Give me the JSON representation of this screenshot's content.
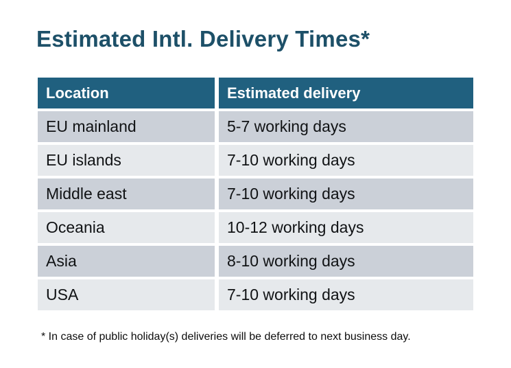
{
  "title": "Estimated Intl. Delivery Times*",
  "table": {
    "headers": [
      "Location",
      "Estimated delivery"
    ],
    "rows": [
      {
        "location": "EU mainland",
        "delivery": "5-7 working days"
      },
      {
        "location": "EU islands",
        "delivery": "7-10 working days"
      },
      {
        "location": "Middle east",
        "delivery": "7-10 working days"
      },
      {
        "location": "Oceania",
        "delivery": "10-12 working days"
      },
      {
        "location": "Asia",
        "delivery": "8-10 working days"
      },
      {
        "location": "USA",
        "delivery": "7-10 working days"
      }
    ]
  },
  "footnote": "* In case of public holiday(s) deliveries will be deferred to next business day.",
  "colors": {
    "title_text": "#1d5068",
    "header_bg": "#20607f",
    "header_text": "#ffffff",
    "row_dark_bg": "#cbd0d8",
    "row_light_bg": "#e6e9ec",
    "cell_text": "#101214",
    "background": "#ffffff"
  }
}
